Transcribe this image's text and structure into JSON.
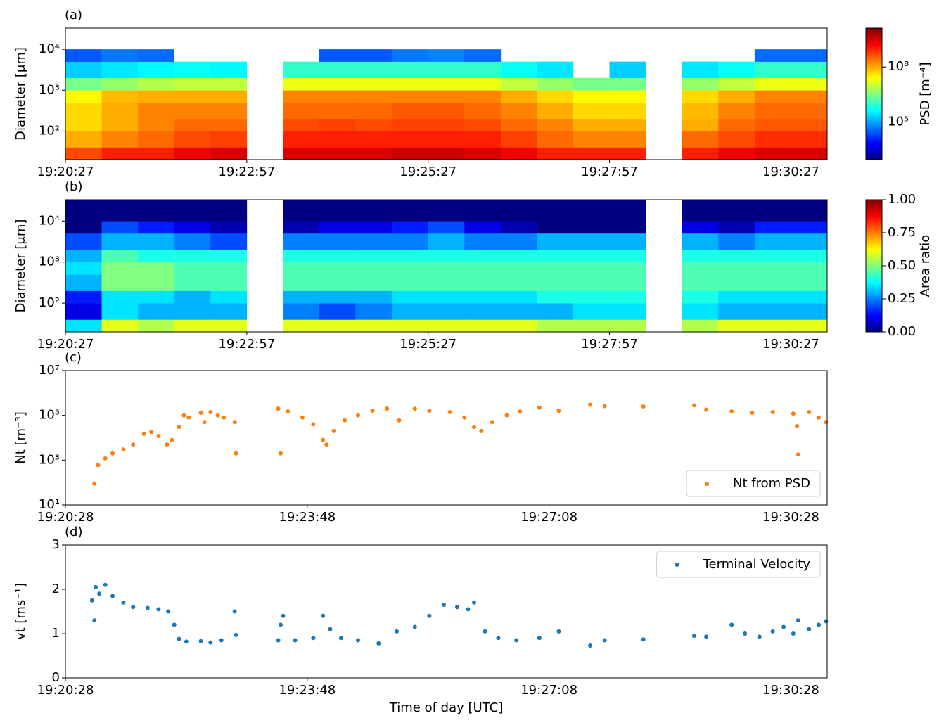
{
  "chart_data": [
    {
      "type": "heatmap",
      "panel_label": "(a)",
      "ylabel": "Diameter [μm]",
      "log_y": true,
      "colormap": "jet",
      "xlim": [
        "19:20:27",
        "19:30:57"
      ],
      "xticks": [
        "19:20:27",
        "19:22:57",
        "19:25:27",
        "19:27:57",
        "19:30:27"
      ],
      "ylim": [
        20,
        33000
      ],
      "yticks": [
        {
          "value": 100,
          "label": "10²"
        },
        {
          "value": 1000,
          "label": "10³"
        },
        {
          "value": 10000,
          "label": "10⁴"
        }
      ],
      "x": [
        "19:20:27",
        "19:20:57",
        "19:21:27",
        "19:21:57",
        "19:22:27",
        "19:22:57",
        "19:23:27",
        "19:23:57",
        "19:24:27",
        "19:24:57",
        "19:25:27",
        "19:25:57",
        "19:26:27",
        "19:26:57",
        "19:27:27",
        "19:27:57",
        "19:28:27",
        "19:28:57",
        "19:29:27",
        "19:29:57",
        "19:30:27",
        "19:30:57"
      ],
      "y": [
        20,
        40,
        100,
        200,
        500,
        1000,
        2000,
        5000,
        10000,
        33000
      ],
      "z": [
        [
          500000000.0,
          100000000.0,
          50000000.0,
          50000000.0,
          30000000.0,
          3000000.0,
          200000.0,
          30000.0,
          null
        ],
        [
          1000000000.0,
          200000000.0,
          100000000.0,
          100000000.0,
          80000000.0,
          5000000.0,
          300000.0,
          50000.0,
          null
        ],
        [
          1000000000.0,
          300000000.0,
          200000000.0,
          200000000.0,
          100000000.0,
          8000000.0,
          400000.0,
          40000.0,
          null
        ],
        [
          2000000000.0,
          500000000.0,
          300000000.0,
          200000000.0,
          100000000.0,
          10000000.0,
          500000.0,
          null,
          null
        ],
        [
          3000000000.0,
          600000000.0,
          300000000.0,
          200000000.0,
          100000000.0,
          10000000.0,
          400000.0,
          null,
          null
        ],
        [
          null,
          null,
          null,
          null,
          null,
          null,
          null,
          null,
          null
        ],
        [
          3000000000.0,
          1000000000.0,
          500000000.0,
          300000000.0,
          200000000.0,
          20000000.0,
          1000000.0,
          null,
          null
        ],
        [
          3000000000.0,
          1000000000.0,
          600000000.0,
          300000000.0,
          200000000.0,
          20000000.0,
          1000000.0,
          30000.0,
          null
        ],
        [
          3000000000.0,
          1000000000.0,
          500000000.0,
          300000000.0,
          200000000.0,
          20000000.0,
          1000000.0,
          30000.0,
          null
        ],
        [
          4000000000.0,
          1000000000.0,
          600000000.0,
          400000000.0,
          200000000.0,
          20000000.0,
          1000000.0,
          50000.0,
          null
        ],
        [
          4000000000.0,
          1000000000.0,
          600000000.0,
          400000000.0,
          200000000.0,
          20000000.0,
          1000000.0,
          60000.0,
          null
        ],
        [
          3000000000.0,
          1000000000.0,
          500000000.0,
          300000000.0,
          200000000.0,
          20000000.0,
          1000000.0,
          40000.0,
          null
        ],
        [
          2000000000.0,
          600000000.0,
          300000000.0,
          200000000.0,
          100000000.0,
          10000000.0,
          500000.0,
          null,
          null
        ],
        [
          1000000000.0,
          300000000.0,
          200000000.0,
          100000000.0,
          50000000.0,
          5000000.0,
          300000.0,
          null,
          null
        ],
        [
          1000000000.0,
          200000000.0,
          100000000.0,
          50000000.0,
          30000000.0,
          3000000.0,
          null,
          null,
          null
        ],
        [
          1000000000.0,
          200000000.0,
          100000000.0,
          50000000.0,
          30000000.0,
          3000000.0,
          200000.0,
          null,
          null
        ],
        [
          null,
          null,
          null,
          null,
          null,
          null,
          null,
          null,
          null
        ],
        [
          1000000000.0,
          300000000.0,
          100000000.0,
          80000000.0,
          50000000.0,
          5000000.0,
          300000.0,
          null,
          null
        ],
        [
          2000000000.0,
          500000000.0,
          300000000.0,
          200000000.0,
          100000000.0,
          10000000.0,
          500000.0,
          null,
          null
        ],
        [
          3000000000.0,
          800000000.0,
          400000000.0,
          300000000.0,
          200000000.0,
          20000000.0,
          1000000.0,
          40000.0,
          null
        ],
        [
          3000000000.0,
          800000000.0,
          400000000.0,
          300000000.0,
          200000000.0,
          20000000.0,
          1000000.0,
          40000.0,
          null
        ]
      ],
      "colorbar": {
        "label": "PSD [m⁻⁴]",
        "log": true,
        "lim": [
          900,
          13000000000.0
        ],
        "ticks": [
          {
            "value": 100000,
            "label": "10⁵"
          },
          {
            "value": 100000000,
            "label": "10⁸"
          }
        ]
      }
    },
    {
      "type": "heatmap",
      "panel_label": "(b)",
      "ylabel": "Diameter [μm]",
      "log_y": true,
      "colormap": "jet",
      "xlim": [
        "19:20:27",
        "19:30:57"
      ],
      "xticks": [
        "19:20:27",
        "19:22:57",
        "19:25:27",
        "19:27:57",
        "19:30:27"
      ],
      "ylim": [
        20,
        33000
      ],
      "yticks": [
        {
          "value": 100,
          "label": "10²"
        },
        {
          "value": 1000,
          "label": "10³"
        },
        {
          "value": 10000,
          "label": "10⁴"
        }
      ],
      "x": [
        "19:20:27",
        "19:20:57",
        "19:21:27",
        "19:21:57",
        "19:22:27",
        "19:22:57",
        "19:23:27",
        "19:23:57",
        "19:24:27",
        "19:24:57",
        "19:25:27",
        "19:25:57",
        "19:26:27",
        "19:26:57",
        "19:27:27",
        "19:27:57",
        "19:28:27",
        "19:28:57",
        "19:29:27",
        "19:29:57",
        "19:30:27",
        "19:30:57"
      ],
      "y": [
        20,
        40,
        100,
        200,
        500,
        1000,
        2000,
        5000,
        10000,
        33000
      ],
      "z": [
        [
          0.35,
          0.1,
          0.15,
          0.3,
          0.35,
          0.3,
          0.2,
          0,
          0
        ],
        [
          0.6,
          0.35,
          0.35,
          0.5,
          0.5,
          0.45,
          0.3,
          0.2,
          0
        ],
        [
          0.55,
          0.3,
          0.35,
          0.5,
          0.5,
          0.4,
          0.3,
          0.15,
          0
        ],
        [
          0.6,
          0.3,
          0.3,
          0.45,
          0.45,
          0.4,
          0.25,
          0.1,
          0
        ],
        [
          0.6,
          0.3,
          0.35,
          0.45,
          0.45,
          0.4,
          0.2,
          0.05,
          0
        ],
        [
          null,
          null,
          null,
          null,
          null,
          null,
          null,
          null,
          null
        ],
        [
          0.6,
          0.25,
          0.3,
          0.45,
          0.45,
          0.4,
          0.25,
          0.05,
          0
        ],
        [
          0.6,
          0.2,
          0.3,
          0.45,
          0.45,
          0.4,
          0.25,
          0.1,
          0
        ],
        [
          0.6,
          0.25,
          0.3,
          0.45,
          0.45,
          0.4,
          0.25,
          0.1,
          0
        ],
        [
          0.6,
          0.3,
          0.35,
          0.45,
          0.45,
          0.4,
          0.25,
          0.15,
          0
        ],
        [
          0.6,
          0.3,
          0.35,
          0.45,
          0.45,
          0.4,
          0.3,
          0.2,
          0
        ],
        [
          0.6,
          0.3,
          0.35,
          0.45,
          0.45,
          0.4,
          0.25,
          0.1,
          0
        ],
        [
          0.6,
          0.3,
          0.35,
          0.45,
          0.45,
          0.4,
          0.25,
          0.05,
          0
        ],
        [
          0.55,
          0.3,
          0.4,
          0.45,
          0.45,
          0.4,
          0.3,
          0,
          0
        ],
        [
          0.55,
          0.35,
          0.4,
          0.45,
          0.45,
          0.4,
          0.3,
          0,
          0
        ],
        [
          0.55,
          0.35,
          0.4,
          0.45,
          0.45,
          0.4,
          0.3,
          0,
          0
        ],
        [
          null,
          null,
          null,
          null,
          null,
          null,
          null,
          null,
          null
        ],
        [
          0.55,
          0.35,
          0.4,
          0.45,
          0.45,
          0.4,
          0.3,
          0.1,
          0
        ],
        [
          0.6,
          0.3,
          0.35,
          0.45,
          0.45,
          0.4,
          0.25,
          0.05,
          0
        ],
        [
          0.6,
          0.3,
          0.35,
          0.45,
          0.45,
          0.4,
          0.3,
          0.15,
          0
        ],
        [
          0.6,
          0.3,
          0.35,
          0.45,
          0.45,
          0.4,
          0.3,
          0.15,
          0
        ]
      ],
      "colorbar": {
        "label": "Area ratio",
        "log": false,
        "lim": [
          0,
          1
        ],
        "ticks": [
          {
            "value": 0,
            "label": "0.00"
          },
          {
            "value": 0.25,
            "label": "0.25"
          },
          {
            "value": 0.5,
            "label": "0.50"
          },
          {
            "value": 0.75,
            "label": "0.75"
          },
          {
            "value": 1,
            "label": "1.00"
          }
        ]
      }
    },
    {
      "type": "scatter",
      "panel_label": "(c)",
      "ylabel": "Nt [m⁻³]",
      "log_y": true,
      "legend": "lower right",
      "xlim": [
        "19:20:28",
        "19:30:58"
      ],
      "xticks": [
        "19:20:28",
        "19:23:48",
        "19:27:08",
        "19:30:28"
      ],
      "ylim": [
        10,
        10000000
      ],
      "yticks": [
        {
          "value": 10,
          "label": "10¹"
        },
        {
          "value": 1000,
          "label": "10³"
        },
        {
          "value": 100000,
          "label": "10⁵"
        },
        {
          "value": 10000000,
          "label": "10⁷"
        }
      ],
      "x": [
        "19:20:52",
        "19:20:55",
        "19:21:01",
        "19:21:07",
        "19:21:16",
        "19:21:24",
        "19:21:33",
        "19:21:39",
        "19:21:45",
        "19:21:52",
        "19:21:56",
        "19:22:02",
        "19:22:06",
        "19:22:10",
        "19:22:20",
        "19:22:23",
        "19:22:28",
        "19:22:34",
        "19:22:39",
        "19:22:48",
        "19:22:49",
        "19:23:24",
        "19:23:26",
        "19:23:32",
        "19:23:44",
        "19:23:53",
        "19:24:01",
        "19:24:04",
        "19:24:10",
        "19:24:19",
        "19:24:30",
        "19:24:42",
        "19:24:54",
        "19:25:04",
        "19:25:17",
        "19:25:29",
        "19:25:46",
        "19:25:58",
        "19:26:06",
        "19:26:12",
        "19:26:21",
        "19:26:33",
        "19:26:44",
        "19:27:00",
        "19:27:16",
        "19:27:42",
        "19:27:54",
        "19:28:26",
        "19:29:08",
        "19:29:18",
        "19:29:39",
        "19:29:56",
        "19:30:13",
        "19:30:30",
        "19:30:33",
        "19:30:34",
        "19:30:43",
        "19:30:51",
        "19:30:57"
      ],
      "series": [
        {
          "name": "Nt from PSD",
          "color": "#ff7f0e",
          "values": [
            90,
            600,
            1200,
            2000,
            3000,
            5000,
            15000,
            18000,
            12000,
            5000,
            8000,
            30000,
            100000,
            80000,
            130000,
            50000,
            140000,
            100000,
            80000,
            50000,
            2000,
            200000,
            2000,
            150000,
            80000,
            40000,
            8000,
            5000,
            20000,
            60000,
            100000,
            160000,
            200000,
            60000,
            200000,
            160000,
            140000,
            80000,
            30000,
            20000,
            50000,
            100000,
            150000,
            220000,
            160000,
            300000,
            260000,
            250000,
            280000,
            180000,
            150000,
            130000,
            140000,
            120000,
            33000,
            1800,
            140000,
            80000,
            50000
          ]
        }
      ]
    },
    {
      "type": "scatter",
      "panel_label": "(d)",
      "ylabel": "vt [ms⁻¹]",
      "xlabel": "Time of day [UTC]",
      "log_y": false,
      "legend": "upper right",
      "xlim": [
        "19:20:28",
        "19:30:58"
      ],
      "xticks": [
        "19:20:28",
        "19:23:48",
        "19:27:08",
        "19:30:28"
      ],
      "ylim": [
        0,
        3
      ],
      "yticks": [
        0,
        1,
        2,
        3
      ],
      "x": [
        "19:20:50",
        "19:20:52",
        "19:20:53",
        "19:20:56",
        "19:21:01",
        "19:21:07",
        "19:21:16",
        "19:21:24",
        "19:21:36",
        "19:21:45",
        "19:21:53",
        "19:21:58",
        "19:22:02",
        "19:22:08",
        "19:22:20",
        "19:22:28",
        "19:22:37",
        "19:22:48",
        "19:22:49",
        "19:23:24",
        "19:23:26",
        "19:23:28",
        "19:23:38",
        "19:23:53",
        "19:24:01",
        "19:24:07",
        "19:24:16",
        "19:24:30",
        "19:24:47",
        "19:25:02",
        "19:25:17",
        "19:25:29",
        "19:25:41",
        "19:25:52",
        "19:26:01",
        "19:26:06",
        "19:26:15",
        "19:26:26",
        "19:26:41",
        "19:27:00",
        "19:27:16",
        "19:27:42",
        "19:27:54",
        "19:28:26",
        "19:29:08",
        "19:29:18",
        "19:29:39",
        "19:29:50",
        "19:30:02",
        "19:30:13",
        "19:30:22",
        "19:30:30",
        "19:30:34",
        "19:30:43",
        "19:30:51",
        "19:30:57"
      ],
      "series": [
        {
          "name": "Terminal Velocity",
          "color": "#1f77b4",
          "values": [
            1.75,
            1.3,
            2.05,
            1.9,
            2.1,
            1.85,
            1.7,
            1.6,
            1.58,
            1.55,
            1.5,
            1.2,
            0.88,
            0.82,
            0.83,
            0.8,
            0.85,
            1.5,
            0.97,
            0.85,
            1.2,
            1.4,
            0.85,
            0.9,
            1.4,
            1.1,
            0.9,
            0.85,
            0.78,
            1.05,
            1.15,
            1.4,
            1.65,
            1.6,
            1.55,
            1.7,
            1.05,
            0.9,
            0.85,
            0.9,
            1.05,
            0.73,
            0.85,
            0.87,
            0.95,
            0.93,
            1.2,
            1.0,
            0.93,
            1.05,
            1.15,
            1.0,
            1.3,
            1.1,
            1.2,
            1.28
          ]
        }
      ]
    }
  ]
}
